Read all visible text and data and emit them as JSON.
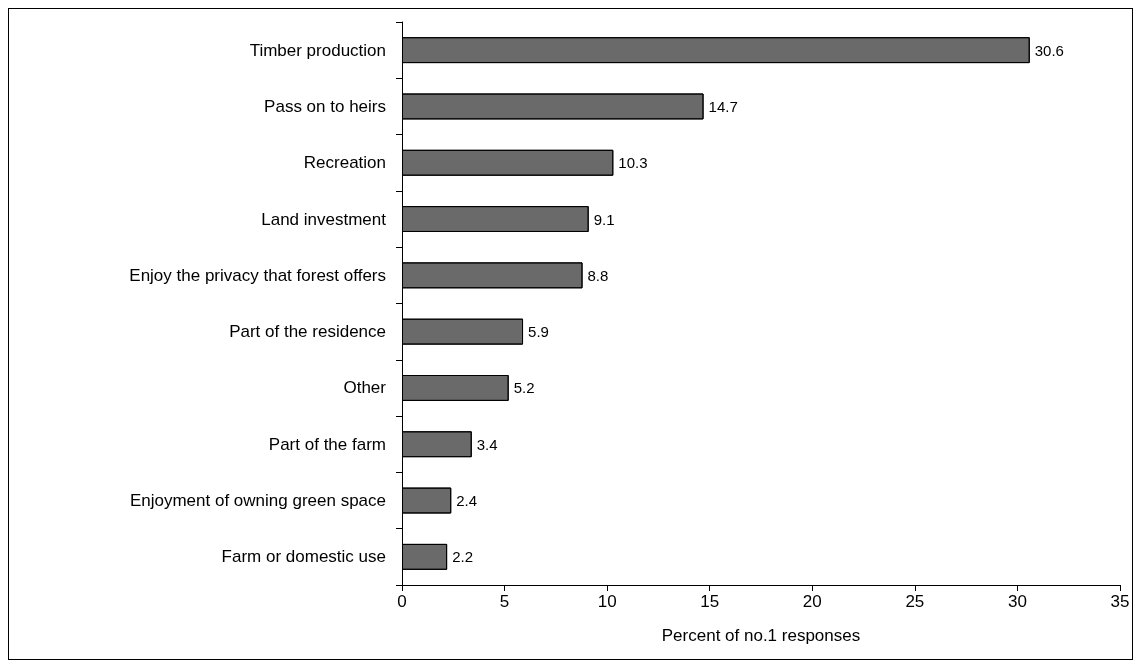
{
  "chart_data": {
    "type": "bar",
    "orientation": "horizontal",
    "categories": [
      "Timber production",
      "Pass on to heirs",
      "Recreation",
      "Land investment",
      "Enjoy the privacy that forest offers",
      "Part of the residence",
      "Other",
      "Part of the farm",
      "Enjoyment of owning green space",
      "Farm or domestic use"
    ],
    "values": [
      30.6,
      14.7,
      10.3,
      9.1,
      8.8,
      5.9,
      5.2,
      3.4,
      2.4,
      2.2
    ],
    "color": "#6a6a6a",
    "xlim": [
      0,
      35
    ],
    "xticks": [
      0,
      5,
      10,
      15,
      20,
      25,
      30,
      35
    ],
    "xlabel": "Percent of no.1 responses",
    "data_labels": true
  }
}
